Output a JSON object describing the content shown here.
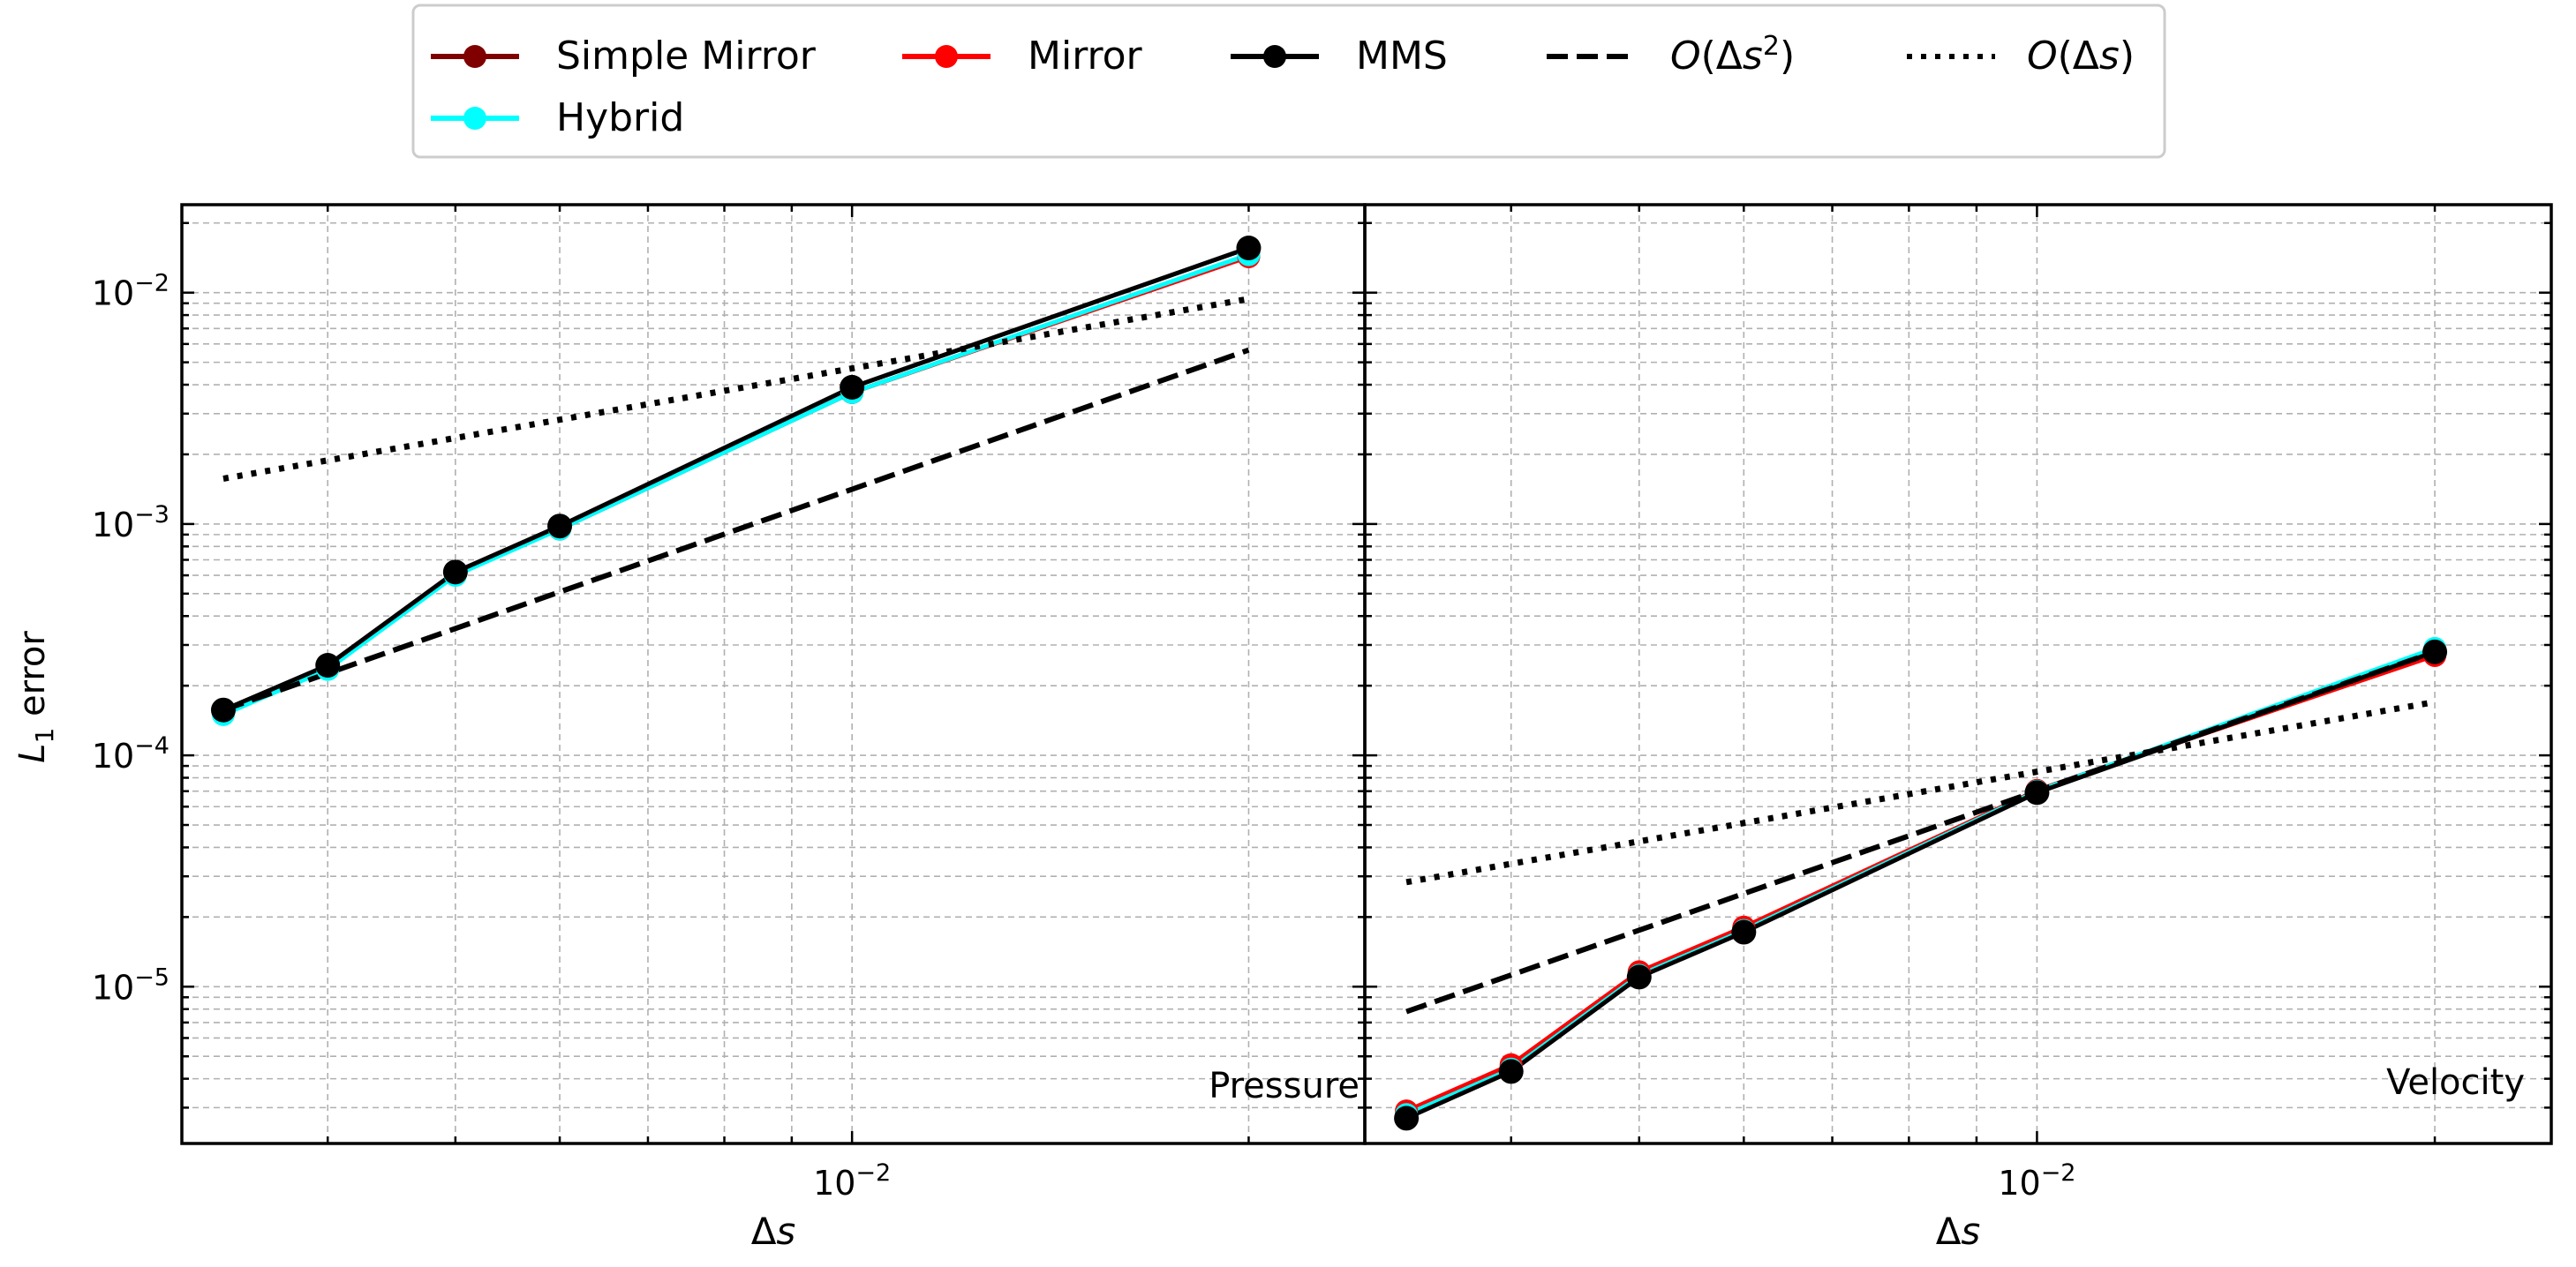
{
  "chart_data": [
    {
      "type": "line",
      "panel_label": "Pressure",
      "xlabel": "Δs",
      "ylabel": "L₁ error",
      "x_scale": "log",
      "y_scale": "log",
      "xlim": [
        0.0031,
        0.0245
      ],
      "ylim": [
        2.1e-06,
        0.024
      ],
      "x_tick_labels": [
        "10^-2"
      ],
      "y_tick_labels": [
        "10^-2",
        "10^-3",
        "10^-4",
        "10^-5"
      ],
      "grid": true,
      "series": [
        {
          "name": "Simple Mirror",
          "color": "#800000",
          "marker": "circle",
          "x": [
            0.003333,
            0.004,
            0.005,
            0.006,
            0.01,
            0.02
          ],
          "y": [
            0.000155,
            0.00024,
            0.00061,
            0.00096,
            0.0037,
            0.0145
          ]
        },
        {
          "name": "Mirror",
          "color": "#ff0000",
          "marker": "circle",
          "x": [
            0.003333,
            0.004,
            0.005,
            0.006,
            0.01,
            0.02
          ],
          "y": [
            0.000155,
            0.00024,
            0.00061,
            0.00095,
            0.0037,
            0.0143
          ]
        },
        {
          "name": "MMS",
          "color": "#000000",
          "marker": "circle",
          "x": [
            0.003333,
            0.004,
            0.005,
            0.006,
            0.01,
            0.02
          ],
          "y": [
            0.000157,
            0.000245,
            0.00062,
            0.00098,
            0.0039,
            0.0156
          ]
        },
        {
          "name": "Hybrid",
          "color": "#00ffff",
          "marker": "circle",
          "x": [
            0.003333,
            0.004,
            0.005,
            0.006,
            0.01,
            0.02
          ],
          "y": [
            0.00015,
            0.000235,
            0.0006,
            0.00095,
            0.0037,
            0.0146
          ]
        }
      ],
      "reference_lines": [
        {
          "name": "O(Δs²)",
          "style": "dashed",
          "x": [
            0.003333,
            0.02
          ],
          "y": [
            0.000157,
            0.00565
          ]
        },
        {
          "name": "O(Δs)",
          "style": "dotted",
          "x": [
            0.003333,
            0.02
          ],
          "y": [
            0.00157,
            0.0094
          ]
        }
      ]
    },
    {
      "type": "line",
      "panel_label": "Velocity",
      "xlabel": "Δs",
      "ylabel": "",
      "x_scale": "log",
      "y_scale": "log",
      "xlim": [
        0.0031,
        0.0245
      ],
      "ylim": [
        2.1e-06,
        0.024
      ],
      "x_tick_labels": [
        "10^-2"
      ],
      "y_tick_labels": [],
      "grid": true,
      "series": [
        {
          "name": "Simple Mirror",
          "color": "#800000",
          "marker": "circle",
          "x": [
            0.003333,
            0.004,
            0.005,
            0.006,
            0.01,
            0.02
          ],
          "y": [
            2.9e-06,
            4.5e-06,
            1.15e-05,
            1.8e-05,
            7.05e-05,
            0.00028
          ]
        },
        {
          "name": "Mirror",
          "color": "#ff0000",
          "marker": "circle",
          "x": [
            0.003333,
            0.004,
            0.005,
            0.006,
            0.01,
            0.02
          ],
          "y": [
            2.9e-06,
            4.6e-06,
            1.16e-05,
            1.81e-05,
            7.05e-05,
            0.00027
          ]
        },
        {
          "name": "MMS",
          "color": "#000000",
          "marker": "circle",
          "x": [
            0.003333,
            0.004,
            0.005,
            0.006,
            0.01,
            0.02
          ],
          "y": [
            2.7e-06,
            4.3e-06,
            1.1e-05,
            1.72e-05,
            6.9e-05,
            0.00028
          ]
        },
        {
          "name": "Hybrid",
          "color": "#00ffff",
          "marker": "circle",
          "x": [
            0.003333,
            0.004,
            0.005,
            0.006,
            0.01,
            0.02
          ],
          "y": [
            2.8e-06,
            4.4e-06,
            1.12e-05,
            1.75e-05,
            7e-05,
            0.00029
          ]
        }
      ],
      "reference_lines": [
        {
          "name": "O(Δs²)",
          "style": "dashed",
          "x": [
            0.003333,
            0.02
          ],
          "y": [
            7.8e-06,
            0.00028
          ]
        },
        {
          "name": "O(Δs)",
          "style": "dotted",
          "x": [
            0.003333,
            0.02
          ],
          "y": [
            2.83e-05,
            0.00017
          ]
        }
      ]
    }
  ],
  "legend": {
    "placement": "top-center",
    "entries": [
      {
        "label": "Simple Mirror",
        "color": "#800000",
        "style": "marker-line"
      },
      {
        "label": "Mirror",
        "color": "#ff0000",
        "style": "marker-line"
      },
      {
        "label": "MMS",
        "color": "#000000",
        "style": "marker-line"
      },
      {
        "label": "O(Δs²)",
        "color": "#000000",
        "style": "dashed"
      },
      {
        "label": "O(Δs)",
        "color": "#000000",
        "style": "dotted"
      },
      {
        "label": "Hybrid",
        "color": "#00ffff",
        "style": "marker-line"
      }
    ]
  },
  "colors": {
    "grid": "#b0b0b0",
    "axis": "#000000",
    "legend_border": "#cccccc"
  }
}
